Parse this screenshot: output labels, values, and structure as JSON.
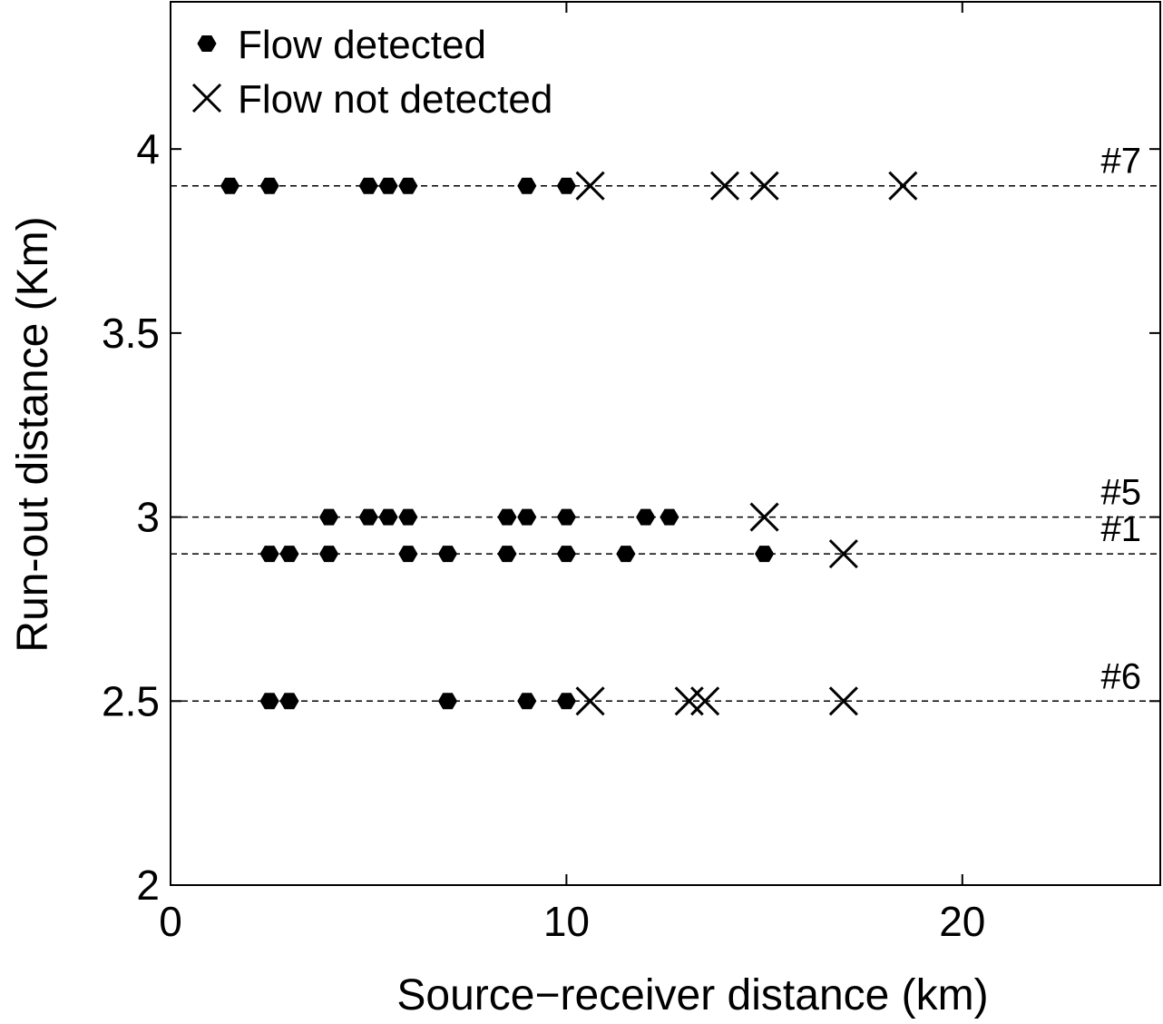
{
  "chart_data": {
    "type": "scatter",
    "xlabel": "Source−receiver distance (km)",
    "ylabel": "Run-out distance (Km)",
    "xlim": [
      0,
      25
    ],
    "ylim": [
      2,
      4.4
    ],
    "x_ticks": [
      0,
      10,
      20
    ],
    "y_ticks": [
      2,
      2.5,
      3,
      3.5,
      4
    ],
    "x_tick_labels": [
      "0",
      "10",
      "20"
    ],
    "y_tick_labels": [
      "2",
      "2.5",
      "3",
      "3.5",
      "4"
    ],
    "grid": false,
    "legend_position": "top-left",
    "reference_lines": [
      {
        "label": "#7",
        "y": 3.9
      },
      {
        "label": "#5",
        "y": 3.0
      },
      {
        "label": "#1",
        "y": 2.9
      },
      {
        "label": "#6",
        "y": 2.5
      }
    ],
    "series": [
      {
        "name": "Flow detected",
        "marker": "hexagon-filled",
        "points": [
          {
            "x": 1.5,
            "y": 3.9
          },
          {
            "x": 2.5,
            "y": 3.9
          },
          {
            "x": 5.0,
            "y": 3.9
          },
          {
            "x": 5.5,
            "y": 3.9
          },
          {
            "x": 6.0,
            "y": 3.9
          },
          {
            "x": 9.0,
            "y": 3.9
          },
          {
            "x": 10.0,
            "y": 3.9
          },
          {
            "x": 4.0,
            "y": 3.0
          },
          {
            "x": 5.0,
            "y": 3.0
          },
          {
            "x": 5.5,
            "y": 3.0
          },
          {
            "x": 6.0,
            "y": 3.0
          },
          {
            "x": 8.5,
            "y": 3.0
          },
          {
            "x": 9.0,
            "y": 3.0
          },
          {
            "x": 10.0,
            "y": 3.0
          },
          {
            "x": 12.0,
            "y": 3.0
          },
          {
            "x": 12.6,
            "y": 3.0
          },
          {
            "x": 2.5,
            "y": 2.9
          },
          {
            "x": 3.0,
            "y": 2.9
          },
          {
            "x": 4.0,
            "y": 2.9
          },
          {
            "x": 6.0,
            "y": 2.9
          },
          {
            "x": 7.0,
            "y": 2.9
          },
          {
            "x": 8.5,
            "y": 2.9
          },
          {
            "x": 10.0,
            "y": 2.9
          },
          {
            "x": 11.5,
            "y": 2.9
          },
          {
            "x": 15.0,
            "y": 2.9
          },
          {
            "x": 2.5,
            "y": 2.5
          },
          {
            "x": 3.0,
            "y": 2.5
          },
          {
            "x": 7.0,
            "y": 2.5
          },
          {
            "x": 9.0,
            "y": 2.5
          },
          {
            "x": 10.0,
            "y": 2.5
          }
        ]
      },
      {
        "name": "Flow not detected",
        "marker": "x",
        "points": [
          {
            "x": 10.6,
            "y": 3.9
          },
          {
            "x": 14.0,
            "y": 3.9
          },
          {
            "x": 15.0,
            "y": 3.9
          },
          {
            "x": 18.5,
            "y": 3.9
          },
          {
            "x": 15.0,
            "y": 3.0
          },
          {
            "x": 17.0,
            "y": 2.9
          },
          {
            "x": 10.6,
            "y": 2.5
          },
          {
            "x": 13.1,
            "y": 2.5
          },
          {
            "x": 13.5,
            "y": 2.5
          },
          {
            "x": 17.0,
            "y": 2.5
          }
        ]
      }
    ]
  }
}
